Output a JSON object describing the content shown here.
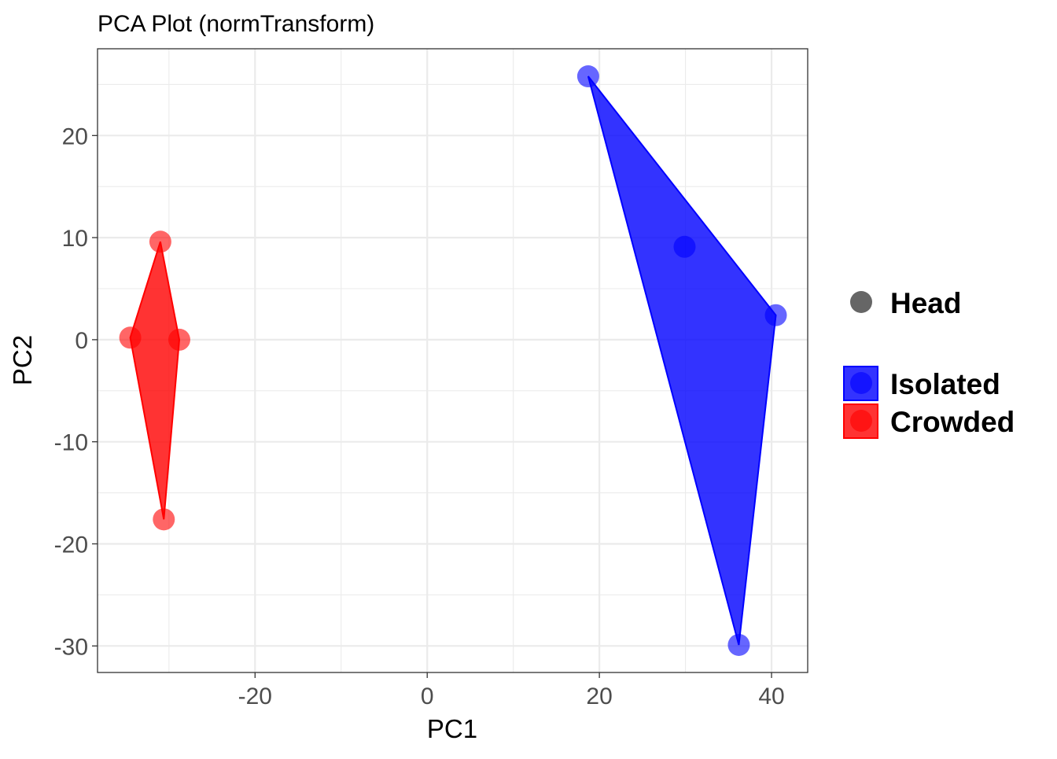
{
  "chart_data": {
    "type": "scatter",
    "title": "PCA Plot (normTransform)",
    "xlabel": "PC1",
    "ylabel": "PC2",
    "xlim": [
      -38.3,
      44.2
    ],
    "ylim": [
      -32.6,
      28.5
    ],
    "xticks": [
      -20,
      0,
      20,
      40
    ],
    "yticks": [
      -30,
      -20,
      -10,
      0,
      10,
      20
    ],
    "grid": true,
    "legend_position": "right",
    "shape_legend": {
      "label": "Head",
      "color": "#666666"
    },
    "series": [
      {
        "name": "Isolated",
        "color": "#0000ff",
        "points": [
          [
            18.7,
            25.8
          ],
          [
            29.9,
            9.1
          ],
          [
            40.5,
            2.4
          ],
          [
            36.2,
            -29.9
          ]
        ],
        "hull": [
          [
            18.7,
            25.8
          ],
          [
            40.5,
            2.4
          ],
          [
            36.2,
            -29.9
          ]
        ]
      },
      {
        "name": "Crowded",
        "color": "#ff0000",
        "points": [
          [
            -31.0,
            9.6
          ],
          [
            -34.5,
            0.2
          ],
          [
            -28.8,
            0.0
          ],
          [
            -30.6,
            -17.6
          ]
        ],
        "hull": [
          [
            -31.0,
            9.6
          ],
          [
            -28.8,
            0.0
          ],
          [
            -30.6,
            -17.6
          ],
          [
            -34.5,
            0.2
          ]
        ]
      }
    ]
  }
}
